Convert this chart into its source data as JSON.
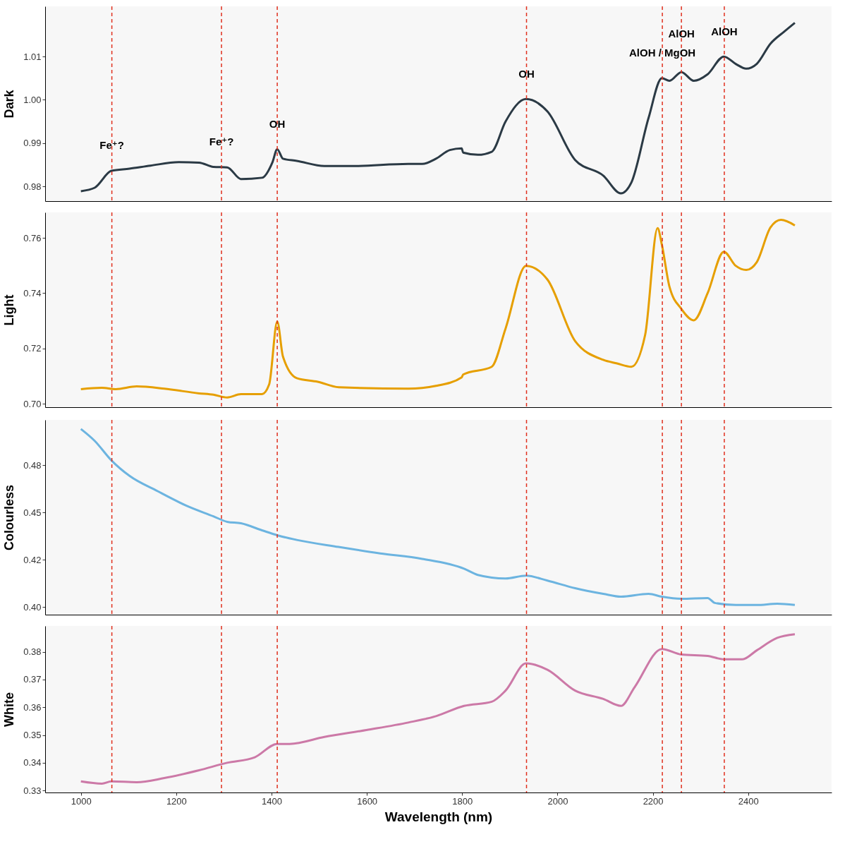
{
  "chart_data": [
    {
      "type": "line",
      "ylabel": "Dark",
      "xlim": [
        925,
        2575
      ],
      "ylim": [
        0.9766,
        1.0216
      ],
      "yticks": [
        0.98,
        0.99,
        {
          "value": 1,
          "label": "1.00"
        },
        1.01
      ],
      "tick_labels": "y",
      "grid": false,
      "series": [
        {
          "color": "#2b3a45",
          "x": [
            1000,
            1029,
            1064,
            1102,
            1146,
            1205,
            1248,
            1278,
            1307,
            1336,
            1380,
            1402,
            1412,
            1424,
            1453,
            1511,
            1570,
            1687,
            1716,
            1745,
            1774,
            1799,
            1802,
            1833,
            1862,
            1891,
            1934,
            1979,
            2037,
            2096,
            2133,
            2155,
            2191,
            2219,
            2235,
            2260,
            2286,
            2315,
            2349,
            2374,
            2396,
            2418,
            2447,
            2476,
            2498
          ],
          "values": [
            0.9789,
            0.9797,
            0.9836,
            0.9841,
            0.9848,
            0.9856,
            0.9855,
            0.9845,
            0.9844,
            0.9817,
            0.982,
            0.9856,
            0.9886,
            0.9864,
            0.9859,
            0.9847,
            0.9847,
            0.9852,
            0.9852,
            0.9864,
            0.9884,
            0.9888,
            0.9878,
            0.9873,
            0.988,
            0.995,
            1.0002,
            0.9973,
            0.9861,
            0.9825,
            0.9784,
            0.9809,
            0.9958,
            1.005,
            1.0044,
            1.0064,
            1.0044,
            1.0059,
            1.01,
            1.0083,
            1.0072,
            1.0083,
            1.013,
            1.0158,
            1.0178
          ]
        }
      ],
      "ref_lines": [
        {
          "axis": "x",
          "value": 1065,
          "label": "Fe⁺?",
          "color": "#e0301e",
          "line_style": "dashed"
        },
        {
          "axis": "x",
          "value": 1295,
          "label": "Fe⁺?",
          "color": "#e0301e",
          "line_style": "dashed"
        },
        {
          "axis": "x",
          "value": 1412,
          "label": "OH",
          "color": "#e0301e",
          "line_style": "dashed"
        },
        {
          "axis": "x",
          "value": 1935,
          "label": "OH",
          "color": "#e0301e",
          "line_style": "dashed"
        },
        {
          "axis": "x",
          "value": 2220,
          "label": "AlOH / MgOH",
          "color": "#e0301e",
          "line_style": "dashed"
        },
        {
          "axis": "x",
          "value": 2260,
          "label": "AlOH",
          "color": "#e0301e",
          "line_style": "dashed"
        },
        {
          "axis": "x",
          "value": 2350,
          "label": "AlOH",
          "color": "#e0301e",
          "line_style": "dashed"
        }
      ]
    },
    {
      "type": "line",
      "ylabel": "Light",
      "xlim": [
        925,
        2575
      ],
      "ylim": [
        0.6988,
        0.7692
      ],
      "yticks": [
        {
          "value": 0.7,
          "label": "0.70"
        },
        0.72,
        0.74,
        0.76
      ],
      "tick_labels": "y",
      "grid": false,
      "series": [
        {
          "color": "#e69f00",
          "x": [
            1000,
            1044,
            1073,
            1117,
            1175,
            1248,
            1278,
            1307,
            1336,
            1380,
            1395,
            1412,
            1424,
            1453,
            1497,
            1541,
            1687,
            1745,
            1799,
            1802,
            1862,
            1891,
            1934,
            1979,
            2037,
            2096,
            2125,
            2155,
            2184,
            2210,
            2219,
            2235,
            2260,
            2286,
            2315,
            2349,
            2374,
            2396,
            2418,
            2447,
            2469,
            2498
          ],
          "values": [
            0.7053,
            0.7058,
            0.7053,
            0.7063,
            0.7055,
            0.7038,
            0.7033,
            0.7023,
            0.7035,
            0.7035,
            0.707,
            0.7297,
            0.7171,
            0.7093,
            0.708,
            0.706,
            0.7055,
            0.7065,
            0.7096,
            0.7106,
            0.7134,
            0.7272,
            0.7499,
            0.7449,
            0.7227,
            0.7159,
            0.7146,
            0.7134,
            0.725,
            0.7635,
            0.7575,
            0.7423,
            0.7343,
            0.7302,
            0.74,
            0.755,
            0.7499,
            0.7484,
            0.7512,
            0.7638,
            0.7665,
            0.7645
          ]
        }
      ],
      "ref_lines": [
        {
          "axis": "x",
          "value": 1065,
          "color": "#e0301e",
          "line_style": "dashed"
        },
        {
          "axis": "x",
          "value": 1295,
          "color": "#e0301e",
          "line_style": "dashed"
        },
        {
          "axis": "x",
          "value": 1412,
          "color": "#e0301e",
          "line_style": "dashed"
        },
        {
          "axis": "x",
          "value": 1935,
          "color": "#e0301e",
          "line_style": "dashed"
        },
        {
          "axis": "x",
          "value": 2220,
          "color": "#e0301e",
          "line_style": "dashed"
        },
        {
          "axis": "x",
          "value": 2260,
          "color": "#e0301e",
          "line_style": "dashed"
        },
        {
          "axis": "x",
          "value": 2350,
          "color": "#e0301e",
          "line_style": "dashed"
        }
      ]
    },
    {
      "type": "line",
      "ylabel": "Colourless",
      "xlim": [
        925,
        2575
      ],
      "ylim": [
        0.396,
        0.499
      ],
      "yticks": [
        {
          "value": 0.4,
          "label": "0.40"
        },
        {
          "value": 0.425,
          "label": "0.42"
        },
        0.45,
        {
          "value": 0.475,
          "label": "0.48"
        }
      ],
      "tick_labels": "y",
      "grid": false,
      "series": [
        {
          "color": "#6cb4e0",
          "x": [
            1000,
            1029,
            1064,
            1102,
            1161,
            1219,
            1278,
            1307,
            1336,
            1380,
            1412,
            1453,
            1541,
            1628,
            1716,
            1804,
            1833,
            1891,
            1934,
            1979,
            2037,
            2096,
            2133,
            2191,
            2219,
            2260,
            2315,
            2330,
            2374,
            2418,
            2461,
            2498
          ],
          "values": [
            0.4942,
            0.4879,
            0.4776,
            0.4694,
            0.4613,
            0.4539,
            0.448,
            0.4451,
            0.4443,
            0.4406,
            0.438,
            0.4355,
            0.4318,
            0.4284,
            0.4255,
            0.4203,
            0.417,
            0.4151,
            0.4166,
            0.414,
            0.41,
            0.407,
            0.4055,
            0.407,
            0.4055,
            0.4044,
            0.4048,
            0.4022,
            0.4011,
            0.4011,
            0.4018,
            0.4011
          ]
        }
      ],
      "ref_lines": [
        {
          "axis": "x",
          "value": 1065,
          "color": "#e0301e",
          "line_style": "dashed"
        },
        {
          "axis": "x",
          "value": 1295,
          "color": "#e0301e",
          "line_style": "dashed"
        },
        {
          "axis": "x",
          "value": 1412,
          "color": "#e0301e",
          "line_style": "dashed"
        },
        {
          "axis": "x",
          "value": 1935,
          "color": "#e0301e",
          "line_style": "dashed"
        },
        {
          "axis": "x",
          "value": 2220,
          "color": "#e0301e",
          "line_style": "dashed"
        },
        {
          "axis": "x",
          "value": 2260,
          "color": "#e0301e",
          "line_style": "dashed"
        },
        {
          "axis": "x",
          "value": 2350,
          "color": "#e0301e",
          "line_style": "dashed"
        }
      ]
    },
    {
      "type": "line",
      "ylabel": "White",
      "xlabel": "Wavelength (nm)",
      "xlim": [
        925,
        2575
      ],
      "xticks": [
        1000,
        1200,
        1400,
        1600,
        1800,
        2000,
        2200,
        2400
      ],
      "ylim": [
        0.3293,
        0.3893
      ],
      "yticks": [
        0.33,
        0.34,
        0.35,
        0.36,
        0.37,
        0.38
      ],
      "grid": false,
      "series": [
        {
          "color": "#cc79a7",
          "x": [
            1000,
            1044,
            1064,
            1117,
            1175,
            1248,
            1307,
            1365,
            1412,
            1438,
            1511,
            1599,
            1687,
            1745,
            1804,
            1862,
            1891,
            1934,
            1979,
            2037,
            2096,
            2133,
            2162,
            2219,
            2260,
            2315,
            2349,
            2388,
            2418,
            2461,
            2498
          ],
          "values": [
            0.3333,
            0.3325,
            0.3333,
            0.333,
            0.3345,
            0.3373,
            0.34,
            0.342,
            0.3468,
            0.3468,
            0.3493,
            0.3518,
            0.3545,
            0.3568,
            0.3605,
            0.362,
            0.366,
            0.3758,
            0.3735,
            0.366,
            0.363,
            0.3605,
            0.3673,
            0.381,
            0.379,
            0.3785,
            0.3773,
            0.3773,
            0.3805,
            0.385,
            0.3863
          ]
        }
      ],
      "ref_lines": [
        {
          "axis": "x",
          "value": 1065,
          "color": "#e0301e",
          "line_style": "dashed"
        },
        {
          "axis": "x",
          "value": 1295,
          "color": "#e0301e",
          "line_style": "dashed"
        },
        {
          "axis": "x",
          "value": 1412,
          "color": "#e0301e",
          "line_style": "dashed"
        },
        {
          "axis": "x",
          "value": 1935,
          "color": "#e0301e",
          "line_style": "dashed"
        },
        {
          "axis": "x",
          "value": 2220,
          "color": "#e0301e",
          "line_style": "dashed"
        },
        {
          "axis": "x",
          "value": 2260,
          "color": "#e0301e",
          "line_style": "dashed"
        },
        {
          "axis": "x",
          "value": 2350,
          "color": "#e0301e",
          "line_style": "dashed"
        }
      ]
    }
  ]
}
